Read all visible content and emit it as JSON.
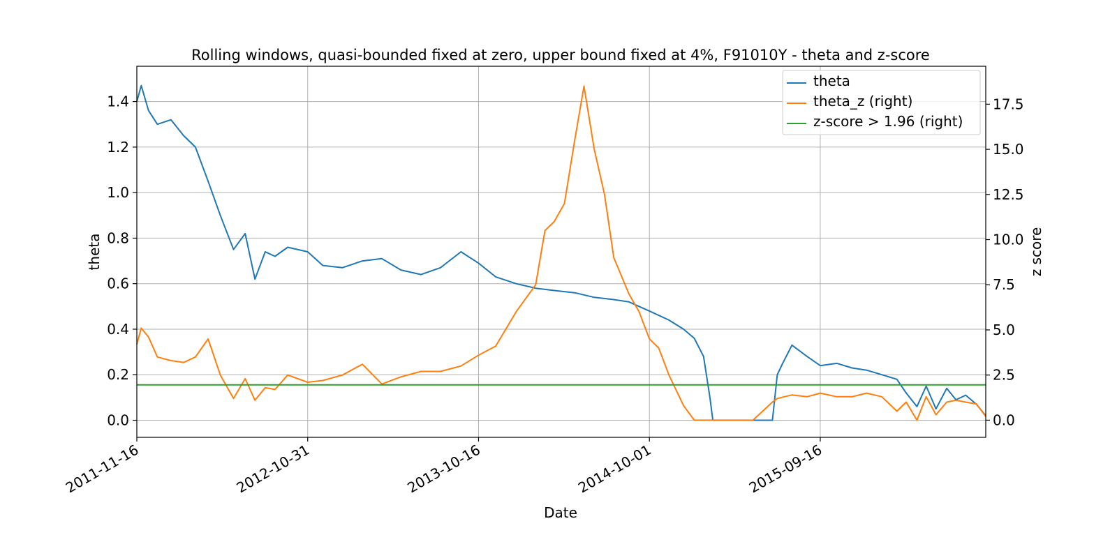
{
  "chart_data": {
    "type": "line",
    "title": "Rolling windows, quasi-bounded fixed at zero, upper bound fixed at 4%, F91010Y - theta and z-score",
    "xlabel": "Date",
    "ylabel": "theta",
    "ylabel_right": "z score",
    "x_ticks": [
      "2011-11-16",
      "2012-10-31",
      "2013-10-16",
      "2014-10-01",
      "2015-09-16"
    ],
    "x_range": [
      "2011-11-16",
      "2016-08-20"
    ],
    "ylim": [
      -0.075,
      1.555
    ],
    "ylim_right": [
      -0.95,
      19.6
    ],
    "y_ticks": [
      "0.0",
      "0.2",
      "0.4",
      "0.6",
      "0.8",
      "1.0",
      "1.2",
      "1.4"
    ],
    "y_ticks_right": [
      "0.0",
      "2.5",
      "5.0",
      "7.5",
      "10.0",
      "12.5",
      "15.0",
      "17.5"
    ],
    "grid": true,
    "legend_position": "top-right",
    "series": [
      {
        "name": "theta",
        "axis": "left",
        "color": "#1f77b4",
        "x": [
          "2011-11-16",
          "2011-11-25",
          "2011-12-10",
          "2011-12-28",
          "2012-01-25",
          "2012-02-20",
          "2012-03-15",
          "2012-04-10",
          "2012-05-05",
          "2012-06-01",
          "2012-06-25",
          "2012-07-15",
          "2012-08-05",
          "2012-08-25",
          "2012-09-20",
          "2012-10-31",
          "2012-12-01",
          "2013-01-10",
          "2013-02-20",
          "2013-04-01",
          "2013-05-10",
          "2013-06-20",
          "2013-07-30",
          "2013-09-10",
          "2013-10-16",
          "2013-11-20",
          "2014-01-01",
          "2014-02-10",
          "2014-03-20",
          "2014-05-01",
          "2014-06-10",
          "2014-07-20",
          "2014-08-20",
          "2014-10-01",
          "2014-11-10",
          "2014-12-10",
          "2015-01-01",
          "2015-01-20",
          "2015-02-02",
          "2015-02-08",
          "2015-03-01",
          "2015-05-01",
          "2015-06-10",
          "2015-06-20",
          "2015-07-01",
          "2015-07-20",
          "2015-08-20",
          "2015-09-16",
          "2015-10-20",
          "2015-11-20",
          "2015-12-20",
          "2016-01-20",
          "2016-02-20",
          "2016-03-10",
          "2016-04-01",
          "2016-04-20",
          "2016-05-10",
          "2016-06-01",
          "2016-06-20",
          "2016-07-10",
          "2016-08-01",
          "2016-08-20"
        ],
        "values": [
          1.4,
          1.47,
          1.36,
          1.3,
          1.32,
          1.25,
          1.2,
          1.05,
          0.9,
          0.75,
          0.82,
          0.62,
          0.74,
          0.72,
          0.76,
          0.74,
          0.68,
          0.67,
          0.7,
          0.71,
          0.66,
          0.64,
          0.67,
          0.74,
          0.69,
          0.63,
          0.6,
          0.58,
          0.57,
          0.56,
          0.54,
          0.53,
          0.52,
          0.48,
          0.44,
          0.4,
          0.36,
          0.28,
          0.1,
          0.0,
          0.0,
          0.0,
          0.0,
          0.2,
          0.25,
          0.33,
          0.28,
          0.24,
          0.25,
          0.23,
          0.22,
          0.2,
          0.18,
          0.12,
          0.06,
          0.15,
          0.05,
          0.14,
          0.09,
          0.11,
          0.07,
          0.02
        ]
      },
      {
        "name": "theta_z (right)",
        "axis": "right",
        "color": "#ff7f0e",
        "x": [
          "2011-11-16",
          "2011-11-25",
          "2011-12-10",
          "2011-12-28",
          "2012-01-25",
          "2012-02-20",
          "2012-03-15",
          "2012-04-10",
          "2012-05-05",
          "2012-06-01",
          "2012-06-25",
          "2012-07-15",
          "2012-08-05",
          "2012-08-25",
          "2012-09-20",
          "2012-10-31",
          "2012-12-01",
          "2013-01-10",
          "2013-02-20",
          "2013-04-01",
          "2013-05-10",
          "2013-06-20",
          "2013-07-30",
          "2013-09-10",
          "2013-10-16",
          "2013-11-20",
          "2014-01-01",
          "2014-02-10",
          "2014-03-01",
          "2014-03-20",
          "2014-04-10",
          "2014-05-01",
          "2014-05-20",
          "2014-06-10",
          "2014-07-01",
          "2014-07-20",
          "2014-08-20",
          "2014-09-10",
          "2014-10-01",
          "2014-10-20",
          "2014-11-10",
          "2014-12-10",
          "2015-01-01",
          "2015-01-20",
          "2015-02-02",
          "2015-03-01",
          "2015-05-01",
          "2015-06-10",
          "2015-06-20",
          "2015-07-20",
          "2015-08-20",
          "2015-09-16",
          "2015-10-20",
          "2015-11-20",
          "2015-12-20",
          "2016-01-20",
          "2016-02-20",
          "2016-03-10",
          "2016-04-01",
          "2016-04-20",
          "2016-05-10",
          "2016-06-01",
          "2016-06-20",
          "2016-07-10",
          "2016-08-01",
          "2016-08-20"
        ],
        "values": [
          4.2,
          5.1,
          4.6,
          3.5,
          3.3,
          3.2,
          3.5,
          4.5,
          2.5,
          1.2,
          2.3,
          1.1,
          1.8,
          1.7,
          2.5,
          2.1,
          2.2,
          2.5,
          3.1,
          2.0,
          2.4,
          2.7,
          2.7,
          3.0,
          3.6,
          4.1,
          6.0,
          7.5,
          10.5,
          11.0,
          12.0,
          15.5,
          18.5,
          15.0,
          12.5,
          9.0,
          7.0,
          6.0,
          4.5,
          4.0,
          2.5,
          0.8,
          0.0,
          0.0,
          0.0,
          0.0,
          0.0,
          1.0,
          1.2,
          1.4,
          1.3,
          1.5,
          1.3,
          1.3,
          1.5,
          1.3,
          0.5,
          1.0,
          0.0,
          1.3,
          0.3,
          1.0,
          1.1,
          1.0,
          0.9,
          0.2
        ]
      },
      {
        "name": "z-score > 1.96 (right)",
        "axis": "right",
        "color": "#2ca02c",
        "x": [
          "2011-11-16",
          "2016-08-20"
        ],
        "values": [
          1.96,
          1.96
        ]
      }
    ]
  }
}
